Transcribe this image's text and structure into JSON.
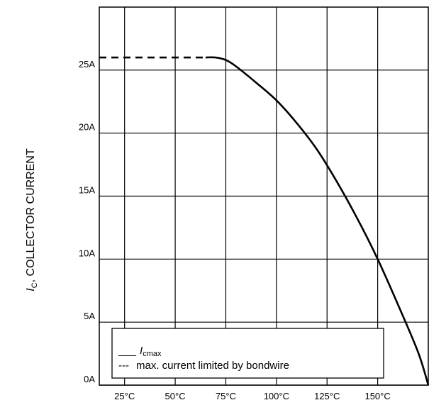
{
  "chart_data": {
    "type": "line",
    "title": "",
    "xlabel": "",
    "ylabel": {
      "symbol": "I",
      "subscript": "C",
      "text": ", COLLECTOR CURRENT"
    },
    "x_unit": "°C",
    "y_unit": "A",
    "xlim": [
      12.5,
      175
    ],
    "ylim": [
      0,
      30
    ],
    "x_ticks": [
      25,
      50,
      75,
      100,
      125,
      150
    ],
    "x_tick_labels": [
      "25°C",
      "50°C",
      "75°C",
      "100°C",
      "125°C",
      "150°C"
    ],
    "y_ticks": [
      0,
      5,
      10,
      15,
      20,
      25
    ],
    "y_tick_labels": [
      "0A",
      "5A",
      "10A",
      "15A",
      "20A",
      "25A"
    ],
    "grid": true,
    "series": [
      {
        "style": "solid",
        "color": "#000000",
        "x": [
          65,
          70,
          75,
          80,
          90,
          100,
          110,
          120,
          130,
          140,
          150,
          160,
          170,
          175
        ],
        "y": [
          26,
          26,
          25.8,
          25.3,
          24,
          22.6,
          20.8,
          18.7,
          16.1,
          13.2,
          10,
          6.4,
          2.6,
          0
        ]
      },
      {
        "style": "dashed",
        "color": "#000000",
        "x": [
          12.5,
          65
        ],
        "y": [
          26,
          26
        ]
      }
    ],
    "legend": {
      "position": "bottom-left",
      "entries": [
        {
          "marker": "___",
          "symbol": "I",
          "subscript": "cmax",
          "text": ""
        },
        {
          "marker": "---",
          "symbol": "",
          "subscript": "",
          "text": "max. current limited by bondwire"
        }
      ]
    }
  }
}
